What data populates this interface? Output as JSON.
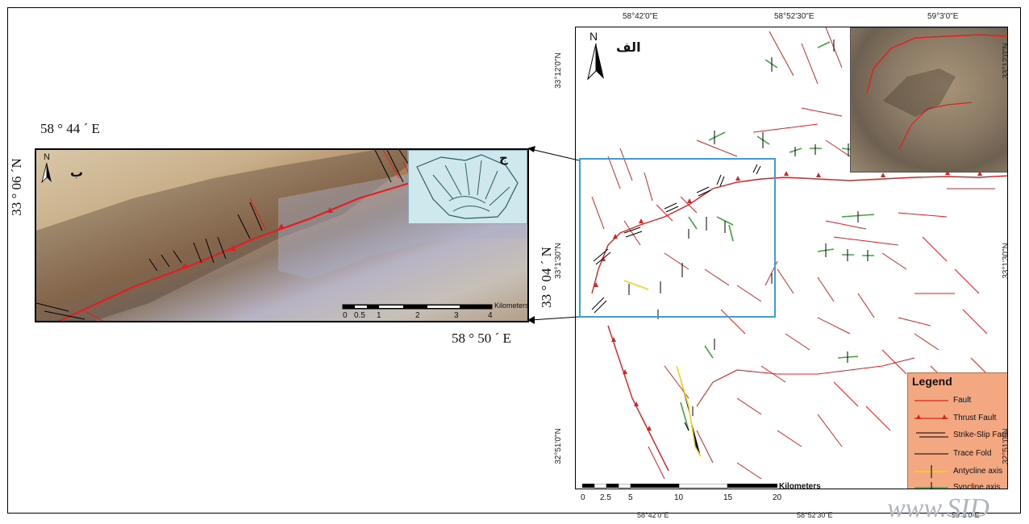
{
  "main_map": {
    "label": "الف",
    "north": "N",
    "top_ticks": [
      "58°42'0\"E",
      "58°52'30\"E",
      "59°3'0\"E"
    ],
    "bottom_ticks": [
      "58°42'0\"E",
      "58°52'30\"E",
      "59°3'0\"E"
    ],
    "left_ticks": [
      "33°12'0\"N",
      "33°1'30\"N",
      "32°51'0\"N"
    ],
    "right_ticks": [
      "33°12'0\"N",
      "33°1'30\"N",
      "32°51'0\"N"
    ],
    "scale": {
      "unit": "Kilometers",
      "ticks": [
        "0",
        "2.5",
        "5",
        "10",
        "15",
        "20"
      ]
    }
  },
  "inset_b": {
    "label": "ب",
    "north": "N",
    "lon_top": "58 ° 44 ´ E",
    "lon_bottom": "58 ° 50 ´ E",
    "lat_left": "33 ° 06 ´N",
    "lat_right": "33 ° 04 ´ N",
    "scale": {
      "unit": "Kilometers",
      "ticks": [
        "0",
        "0.5",
        "1",
        "2",
        "3",
        "4"
      ]
    }
  },
  "inset_c": {
    "label": "ج"
  },
  "legend": {
    "title": "Legend",
    "items": [
      {
        "symbol": "fault",
        "label": "Fault",
        "color": "#e02020"
      },
      {
        "symbol": "thrust-fault",
        "label": "Thrust Fault",
        "color": "#e02020"
      },
      {
        "symbol": "strike-slip-fault",
        "label": "Strike-Slip Fault",
        "color": "#000000"
      },
      {
        "symbol": "trace-fold",
        "label": "Trace Fold",
        "color": "#000000"
      },
      {
        "symbol": "anticline-axis",
        "label": "Antycline axis",
        "color": "#f2d21a"
      },
      {
        "symbol": "syncline-axis",
        "label": "Syncline axis",
        "color": "#3da83d"
      }
    ]
  },
  "colors": {
    "fault": "#e02020",
    "highlight_box": "#3aa0d8",
    "legend_bg": "#f4a881"
  },
  "watermark": "www.SID"
}
